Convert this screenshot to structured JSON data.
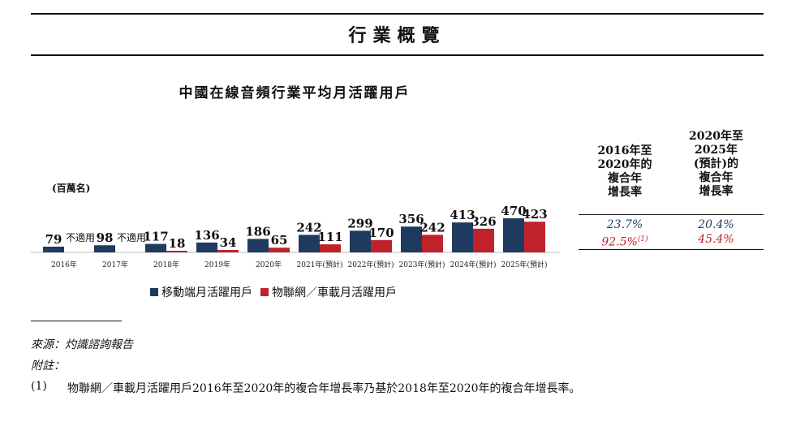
{
  "heading": "行業概覽",
  "chart_data": {
    "type": "bar",
    "title": "中國在線音頻行業平均月活躍用戶",
    "unit": "(百萬名)",
    "categories": [
      "2016年",
      "2017年",
      "2018年",
      "2019年",
      "2020年",
      "2021年(預計)",
      "2022年(預計)",
      "2023年(預計)",
      "2024年(預計)",
      "2025年(預計)"
    ],
    "series": [
      {
        "name": "移動端月活躍用戶",
        "color": "#1f3a5f",
        "values": [
          79,
          98,
          117,
          136,
          186,
          242,
          299,
          356,
          413,
          470
        ]
      },
      {
        "name": "物聯網／車載月活躍用戶",
        "color": "#c0222b",
        "values": [
          null,
          null,
          18,
          34,
          65,
          111,
          170,
          242,
          326,
          423
        ]
      }
    ],
    "na_label": "不適用",
    "ylim": [
      0,
      470
    ]
  },
  "cagr": {
    "col1_header": [
      "2016年至",
      "2020年的",
      "複合年",
      "增長率"
    ],
    "col2_header": [
      "2020年至",
      "2025年",
      "(預計)的",
      "複合年",
      "增長率"
    ],
    "col1_values": [
      "23.7%",
      "92.5%"
    ],
    "col1_note": "(1)",
    "col2_values": [
      "20.4%",
      "45.4%"
    ]
  },
  "notes": {
    "source": "來源：灼識諮詢報告",
    "remark": "附註：",
    "footnote_num": "(1)",
    "footnote_text": "物聯網／車載月活躍用戶2016年至2020年的複合年增長率乃基於2018年至2020年的複合年增長率。"
  }
}
